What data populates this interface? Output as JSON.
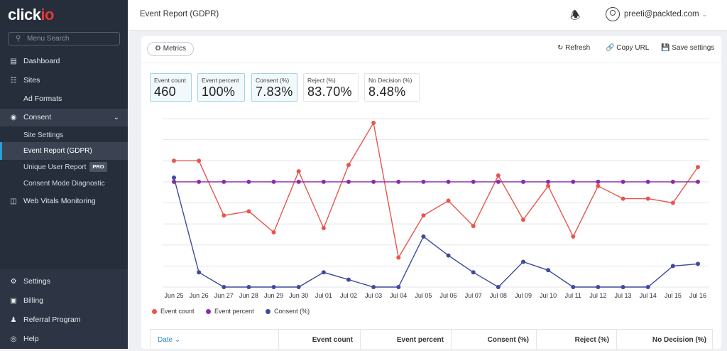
{
  "app": {
    "logo": "clickio"
  },
  "sidebar": {
    "search_placeholder": "Menu Search",
    "items": [
      {
        "label": "Dashboard",
        "icon": "dashboard-icon"
      },
      {
        "label": "Sites",
        "icon": "sitemap-icon"
      },
      {
        "label": "Ad Formats"
      },
      {
        "label": "Consent",
        "icon": "consent-icon"
      },
      {
        "label": "Site Settings"
      },
      {
        "label": "Event Report (GDPR)"
      },
      {
        "label": "Unique User Report",
        "badge": "PRO"
      },
      {
        "label": "Consent Mode Diagnostic"
      },
      {
        "label": "Web Vitals Monitoring",
        "icon": "monitor-icon"
      }
    ],
    "bottom": [
      {
        "label": "Settings",
        "icon": "gear-icon"
      },
      {
        "label": "Billing",
        "icon": "billing-icon"
      },
      {
        "label": "Referral Program",
        "icon": "users-icon"
      },
      {
        "label": "Help",
        "icon": "help-icon"
      }
    ]
  },
  "header": {
    "title": "Event Report (GDPR)",
    "user": "preeti@packted.com"
  },
  "toolbar": {
    "metrics": "Metrics",
    "refresh": "Refresh",
    "copy_url": "Copy URL",
    "save": "Save settings"
  },
  "cards": [
    {
      "label": "Event count",
      "value": "460"
    },
    {
      "label": "Event percent",
      "value": "100%"
    },
    {
      "label": "Consent (%)",
      "value": "7.83%"
    },
    {
      "label": "Reject (%)",
      "value": "83.70%"
    },
    {
      "label": "No Decision (%)",
      "value": "8.48%"
    }
  ],
  "chart_data": {
    "type": "line",
    "x": [
      "Jun 25",
      "Jun 26",
      "Jun 27",
      "Jun 28",
      "Jun 29",
      "Jun 30",
      "Jul 01",
      "Jul 02",
      "Jul 03",
      "Jul 04",
      "Jul 05",
      "Jul 06",
      "Jul 07",
      "Jul 08",
      "Jul 09",
      "Jul 10",
      "Jul 11",
      "Jul 12",
      "Jul 13",
      "Jul 14",
      "Jul 15",
      "Jul 16"
    ],
    "series": [
      {
        "name": "Event count",
        "color": "#e8554c",
        "values": [
          6.0,
          6.0,
          3.4,
          3.6,
          2.6,
          5.5,
          2.8,
          5.8,
          7.8,
          1.4,
          3.4,
          4.1,
          2.9,
          5.3,
          3.2,
          4.8,
          2.4,
          4.8,
          4.2,
          4.2,
          4.0,
          5.7
        ]
      },
      {
        "name": "Event percent",
        "color": "#8e2ba8",
        "values": [
          5.0,
          5.0,
          5.0,
          5.0,
          5.0,
          5.0,
          5.0,
          5.0,
          5.0,
          5.0,
          5.0,
          5.0,
          5.0,
          5.0,
          5.0,
          5.0,
          5.0,
          5.0,
          5.0,
          5.0,
          5.0,
          5.0
        ]
      },
      {
        "name": "Consent (%)",
        "color": "#3e4a9e",
        "values": [
          5.2,
          0.7,
          0,
          0,
          0,
          0,
          0.7,
          0.35,
          0,
          0,
          2.4,
          1.5,
          0.7,
          0,
          1.2,
          0.8,
          0,
          0,
          0,
          0,
          1.0,
          1.1
        ]
      }
    ],
    "ylim": [
      0,
      8
    ],
    "legend": "bottom-left",
    "grid": true
  },
  "table": {
    "columns": [
      "Date",
      "Event count",
      "Event percent",
      "Consent (%)",
      "Reject (%)",
      "No Decision (%)"
    ]
  }
}
